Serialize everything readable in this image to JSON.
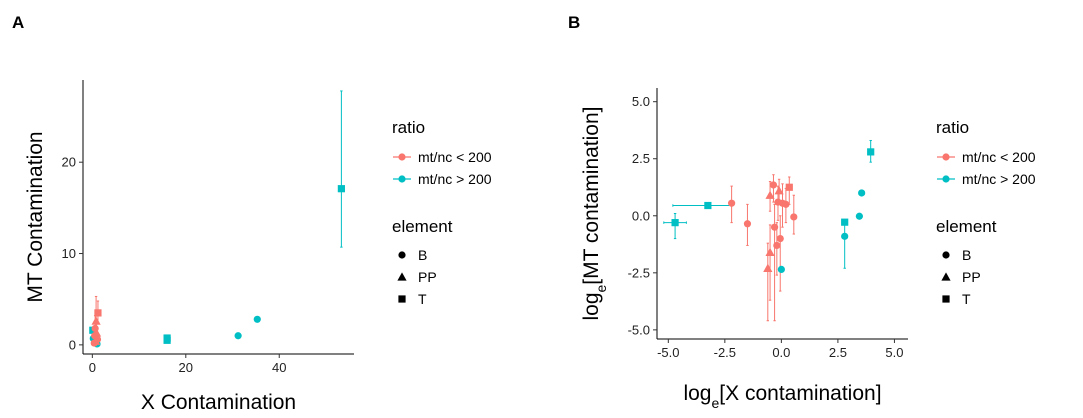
{
  "chart_data": [
    {
      "panel": "A",
      "type": "scatter",
      "xlabel": "X Contamination",
      "ylabel": "MT Contamination",
      "xlim": [
        -2,
        56
      ],
      "ylim": [
        -1,
        29
      ],
      "xticks": [
        0,
        20,
        40
      ],
      "yticks": [
        0,
        10,
        20
      ],
      "grid": false,
      "legend": {
        "placement": "right",
        "ratio_title": "ratio",
        "ratio_entries": [
          {
            "label": "mt/nc < 200",
            "color": "#F8766D"
          },
          {
            "label": "mt/nc > 200",
            "color": "#00BFC4"
          }
        ],
        "element_title": "element",
        "element_entries": [
          {
            "label": "B",
            "shape": "circle"
          },
          {
            "label": "PP",
            "shape": "triangle"
          },
          {
            "label": "T",
            "shape": "square"
          }
        ]
      },
      "points": [
        {
          "x": 53.3,
          "y": 17.1,
          "ylo": 10.7,
          "yhi": 27.8,
          "ratio": "high",
          "element": "T"
        },
        {
          "x": 35.3,
          "y": 2.8,
          "ratio": "high",
          "element": "B"
        },
        {
          "x": 31.2,
          "y": 1.0,
          "ratio": "high",
          "element": "B"
        },
        {
          "x": 16.0,
          "y": 0.75,
          "ratio": "high",
          "element": "T"
        },
        {
          "x": 16.0,
          "y": 0.5,
          "ratio": "high",
          "element": "T"
        },
        {
          "x": 0.1,
          "y": 1.6,
          "ratio": "high",
          "element": "T"
        },
        {
          "x": 0.2,
          "y": 0.7,
          "ratio": "high",
          "element": "B"
        },
        {
          "x": 1.0,
          "y": 0.1,
          "ratio": "high",
          "element": "B"
        },
        {
          "x": 1.2,
          "y": 3.5,
          "ylo": 2.5,
          "yhi": 4.8,
          "ratio": "low",
          "element": "T"
        },
        {
          "x": 0.8,
          "y": 2.6,
          "ylo": 1.8,
          "yhi": 5.3,
          "ratio": "low",
          "element": "PP"
        },
        {
          "x": 0.6,
          "y": 1.8,
          "ylo": 0.8,
          "yhi": 3.2,
          "ratio": "low",
          "element": "B"
        },
        {
          "x": 0.9,
          "y": 1.3,
          "ylo": 0.6,
          "yhi": 2.3,
          "ratio": "low",
          "element": "PP"
        },
        {
          "x": 0.5,
          "y": 1.0,
          "ylo": 0.3,
          "yhi": 2.0,
          "ratio": "low",
          "element": "B"
        },
        {
          "x": 1.1,
          "y": 0.6,
          "ylo": 0.2,
          "yhi": 1.2,
          "ratio": "low",
          "element": "B"
        },
        {
          "x": 0.7,
          "y": 0.4,
          "ylo": 0.1,
          "yhi": 1.0,
          "ratio": "low",
          "element": "PP"
        },
        {
          "x": 0.4,
          "y": 0.2,
          "ylo": 0.0,
          "yhi": 0.6,
          "ratio": "low",
          "element": "B"
        }
      ]
    },
    {
      "panel": "B",
      "type": "scatter",
      "xlabel": "log_e[X contamination]",
      "ylabel": "log_e[MT contamination]",
      "xlim": [
        -5.5,
        5.6
      ],
      "ylim": [
        -5.4,
        5.6
      ],
      "xticks": [
        -5.0,
        -2.5,
        0.0,
        2.5,
        5.0
      ],
      "yticks": [
        -5.0,
        -2.5,
        0.0,
        2.5,
        5.0
      ],
      "grid": false,
      "legend": {
        "placement": "right",
        "ratio_title": "ratio",
        "ratio_entries": [
          {
            "label": "mt/nc < 200",
            "color": "#F8766D"
          },
          {
            "label": "mt/nc > 200",
            "color": "#00BFC4"
          }
        ],
        "element_title": "element",
        "element_entries": [
          {
            "label": "B",
            "shape": "circle"
          },
          {
            "label": "PP",
            "shape": "triangle"
          },
          {
            "label": "T",
            "shape": "square"
          }
        ]
      },
      "points": [
        {
          "x": 3.95,
          "y": 2.8,
          "ylo": 2.35,
          "yhi": 3.3,
          "ratio": "high",
          "element": "T"
        },
        {
          "x": 3.55,
          "y": 1.0,
          "ratio": "high",
          "element": "B"
        },
        {
          "x": 3.45,
          "y": -0.02,
          "ratio": "high",
          "element": "B"
        },
        {
          "x": 2.8,
          "y": -0.28,
          "ratio": "high",
          "element": "T"
        },
        {
          "x": 2.8,
          "y": -0.9,
          "ylo": -2.3,
          "yhi": -0.3,
          "ratio": "high",
          "element": "B"
        },
        {
          "x": 0.0,
          "y": -2.35,
          "ratio": "high",
          "element": "B"
        },
        {
          "x": -3.25,
          "y": 0.45,
          "xlo": -4.8,
          "xhi": -2.2,
          "ratio": "high",
          "element": "T"
        },
        {
          "x": -4.7,
          "y": -0.3,
          "xlo": -5.2,
          "xhi": -4.2,
          "ylo": -1.0,
          "yhi": 0.1,
          "ratio": "high",
          "element": "T"
        },
        {
          "x": -2.2,
          "y": 0.55,
          "ylo": -0.3,
          "yhi": 1.3,
          "ratio": "low",
          "element": "B"
        },
        {
          "x": -1.5,
          "y": -0.35,
          "ylo": -1.3,
          "yhi": 0.5,
          "ratio": "low",
          "element": "B"
        },
        {
          "x": -0.5,
          "y": 0.9,
          "ylo": 0.2,
          "yhi": 1.5,
          "ratio": "low",
          "element": "PP"
        },
        {
          "x": -0.35,
          "y": 1.35,
          "ylo": 0.6,
          "yhi": 1.8,
          "ratio": "low",
          "element": "B"
        },
        {
          "x": -0.1,
          "y": 1.1,
          "ylo": 0.5,
          "yhi": 1.6,
          "ratio": "low",
          "element": "PP"
        },
        {
          "x": -0.15,
          "y": 0.6,
          "ylo": -0.2,
          "yhi": 1.3,
          "ratio": "low",
          "element": "B"
        },
        {
          "x": 0.05,
          "y": 0.55,
          "ylo": -0.5,
          "yhi": 1.4,
          "ratio": "low",
          "element": "B"
        },
        {
          "x": 0.2,
          "y": 0.5,
          "ylo": -0.3,
          "yhi": 1.2,
          "ratio": "low",
          "element": "B"
        },
        {
          "x": 0.35,
          "y": 1.25,
          "ylo": 0.5,
          "yhi": 1.7,
          "ratio": "low",
          "element": "T"
        },
        {
          "x": 0.55,
          "y": -0.05,
          "ylo": -0.8,
          "yhi": 0.9,
          "ratio": "low",
          "element": "B"
        },
        {
          "x": -0.3,
          "y": -0.5,
          "ylo": -4.6,
          "yhi": 0.5,
          "ratio": "low",
          "element": "B"
        },
        {
          "x": -0.5,
          "y": -1.6,
          "ylo": -3.7,
          "yhi": -0.4,
          "ratio": "low",
          "element": "PP"
        },
        {
          "x": -0.6,
          "y": -2.3,
          "ylo": -4.6,
          "yhi": -1.2,
          "ratio": "low",
          "element": "PP"
        },
        {
          "x": -0.05,
          "y": -1.0,
          "ylo": -3.3,
          "yhi": 0.0,
          "ratio": "low",
          "element": "B"
        },
        {
          "x": -0.2,
          "y": -1.3,
          "ylo": -2.6,
          "yhi": -0.3,
          "ratio": "low",
          "element": "B"
        }
      ]
    }
  ]
}
